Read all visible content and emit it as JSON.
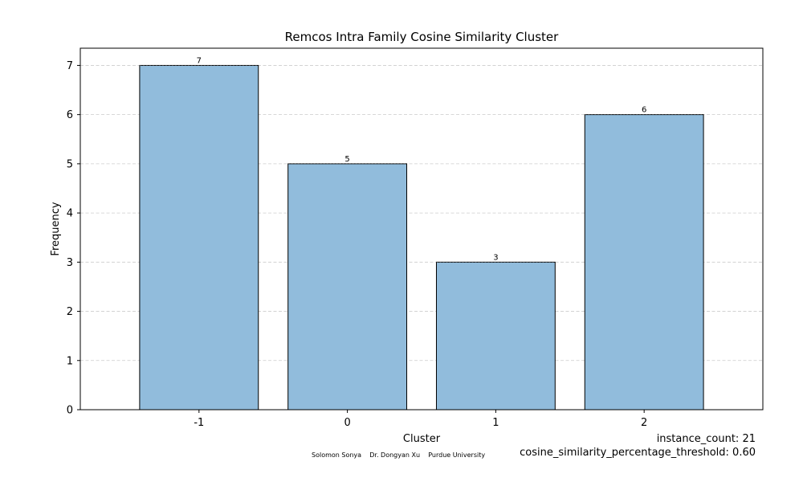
{
  "chart_data": {
    "type": "bar",
    "title": "Remcos Intra Family Cosine Similarity Cluster",
    "xlabel": "Cluster",
    "ylabel": "Frequency",
    "categories": [
      "-1",
      "0",
      "1",
      "2"
    ],
    "values": [
      7,
      5,
      3,
      6
    ],
    "ylim": [
      0,
      7.35
    ],
    "yticks": [
      0,
      1,
      2,
      3,
      4,
      5,
      6,
      7
    ],
    "grid": "horizontal dashed",
    "bar_color": "#91bcdc",
    "edge_color": "#000000"
  },
  "footer": {
    "credits": "Solomon Sonya    Dr. Dongyan Xu    Purdue University",
    "instance_count": "instance_count: 21",
    "threshold": "cosine_similarity_percentage_threshold: 0.60"
  }
}
